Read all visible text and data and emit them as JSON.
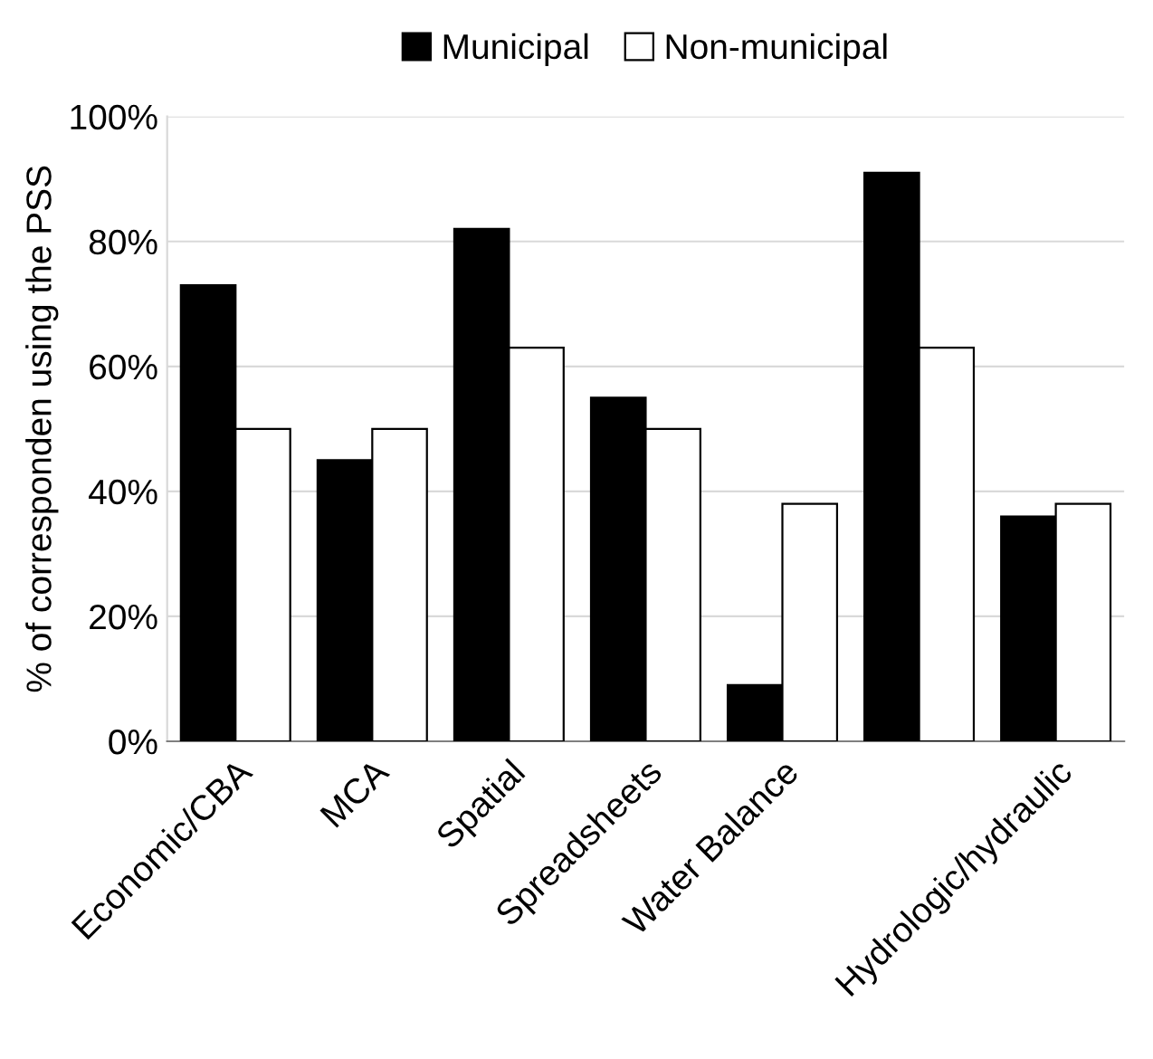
{
  "chart_data": {
    "type": "bar",
    "ylabel": "% of corresponden using the PSS",
    "categories": [
      "Economic/CBA",
      "MCA",
      "Spatial",
      "Spreadsheets",
      "Water Balance",
      null,
      "Hydrologic/hydraulic"
    ],
    "series": [
      {
        "name": "Municipal",
        "color": "#000000",
        "values": [
          73,
          45,
          82,
          55,
          9,
          91,
          36
        ]
      },
      {
        "name": "Non-municipal",
        "color": "#ffffff",
        "values": [
          50,
          50,
          63,
          50,
          38,
          63,
          38
        ]
      }
    ],
    "ylim": [
      0,
      100
    ],
    "yticks": [
      {
        "value": 0,
        "label": "0%"
      },
      {
        "value": 20,
        "label": "20%"
      },
      {
        "value": 40,
        "label": "40%"
      },
      {
        "value": 60,
        "label": "60%"
      },
      {
        "value": 80,
        "label": "80%"
      },
      {
        "value": 100,
        "label": "100%"
      }
    ],
    "grid": "y",
    "legend": "top"
  }
}
